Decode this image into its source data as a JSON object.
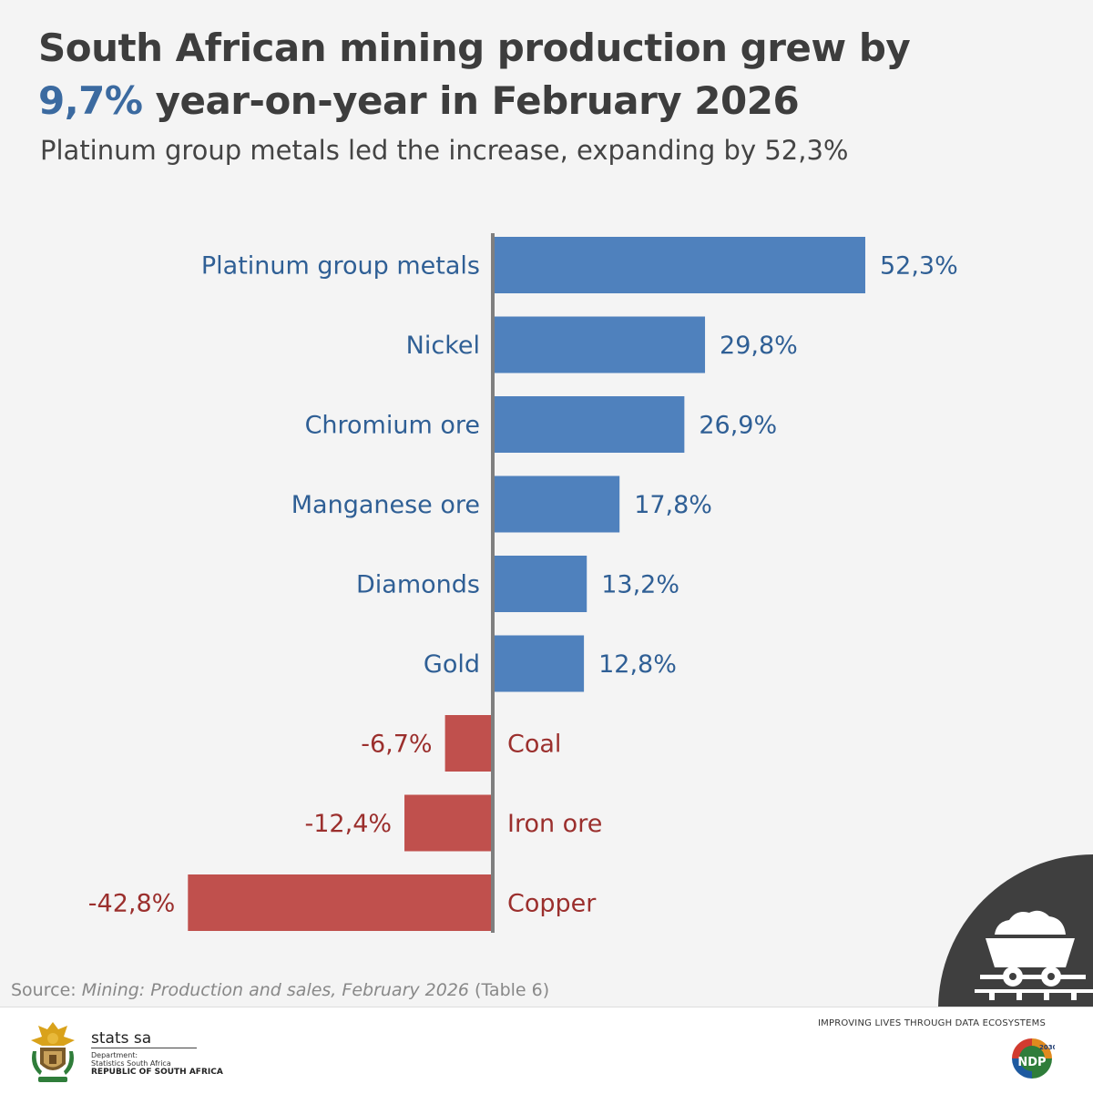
{
  "title": {
    "line1": "South African mining production grew by",
    "line2_highlight": "9,7%",
    "line2_rest": " year-on-year in February 2026",
    "highlight_color": "#3b6aa0"
  },
  "subtitle": "Platinum group metals led the increase, expanding by 52,3%",
  "chart_data": {
    "type": "bar",
    "orientation": "horizontal",
    "categories": [
      "Platinum group metals",
      "Nickel",
      "Chromium ore",
      "Manganese ore",
      "Diamonds",
      "Gold",
      "Coal",
      "Iron ore",
      "Copper"
    ],
    "values": [
      52.3,
      29.8,
      26.9,
      17.8,
      13.2,
      12.8,
      -6.7,
      -12.4,
      -42.8
    ],
    "value_labels": [
      "52,3%",
      "29,8%",
      "26,9%",
      "17,8%",
      "13,2%",
      "12,8%",
      "-6,7%",
      "-12,4%",
      "-42,8%"
    ],
    "positive_color": "#4f81bd",
    "negative_color": "#c0504d",
    "positive_label_color": "#2f5f95",
    "negative_label_color": "#9b2f2d",
    "axis_color": "#7f7f7f",
    "grid": false,
    "legend": "none"
  },
  "source": {
    "prefix": "Source: ",
    "title": "Mining: Production and sales, February 2026",
    "suffix": " (Table 6)"
  },
  "footer": {
    "stats_name": "stats sa",
    "dept_line1": "Department:",
    "dept_line2": "Statistics South Africa",
    "republic": "REPUBLIC OF SOUTH AFRICA",
    "tagline": "IMPROVING LIVES THROUGH DATA ECOSYSTEMS",
    "ndp_year": "2030",
    "ndp_text": "NDP"
  },
  "icons": {
    "corner": "mine-cart-icon",
    "coat_of_arms": "coat-of-arms-icon",
    "ndp_logo": "ndp-logo-icon"
  }
}
